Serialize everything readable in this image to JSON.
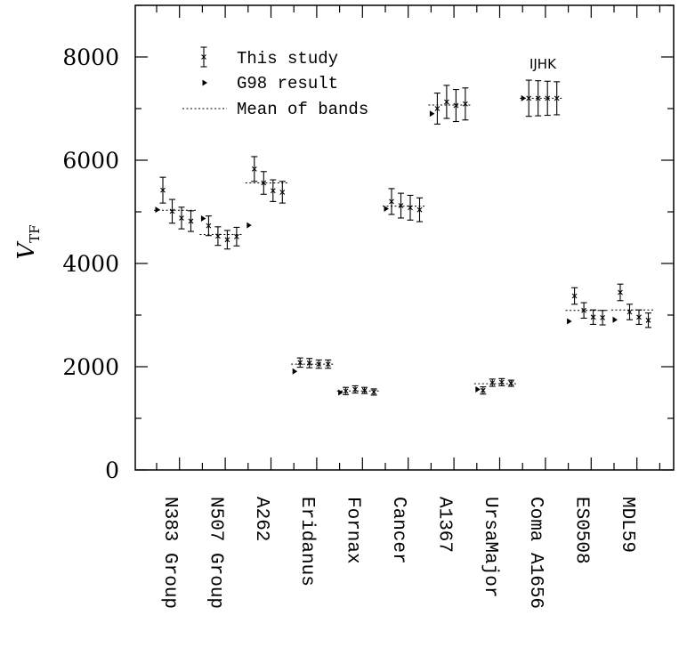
{
  "chart_data": {
    "type": "scatter",
    "title": "",
    "xlabel": "",
    "ylabel": "V",
    "ylabel_sub": "TF",
    "ylim": [
      0,
      9000
    ],
    "yticks": [
      0,
      2000,
      4000,
      6000,
      8000
    ],
    "yminor_step": 1000,
    "grid": false,
    "legend_position": "top-left",
    "legend": {
      "this_study": "This study",
      "g98": "G98 result",
      "mean": "Mean of bands"
    },
    "annotation": "IJHK",
    "annotation_cluster": "Coma A1656",
    "clusters": [
      {
        "name": "N383 Group",
        "g98": 5040,
        "mean": 5030,
        "points": [
          {
            "v": 5420,
            "err": 250
          },
          {
            "v": 5010,
            "err": 230
          },
          {
            "v": 4880,
            "err": 210
          },
          {
            "v": 4820,
            "err": 200
          }
        ]
      },
      {
        "name": "N507 Group",
        "g98": 4870,
        "mean": 4560,
        "points": [
          {
            "v": 4730,
            "err": 190
          },
          {
            "v": 4530,
            "err": 180
          },
          {
            "v": 4460,
            "err": 180
          },
          {
            "v": 4520,
            "err": 180
          }
        ]
      },
      {
        "name": "A262",
        "g98": 4740,
        "mean": 5560,
        "points": [
          {
            "v": 5830,
            "err": 240
          },
          {
            "v": 5560,
            "err": 220
          },
          {
            "v": 5410,
            "err": 210
          },
          {
            "v": 5380,
            "err": 210
          }
        ]
      },
      {
        "name": "Eridanus",
        "g98": 1910,
        "mean": 2050,
        "points": [
          {
            "v": 2080,
            "err": 90
          },
          {
            "v": 2070,
            "err": 90
          },
          {
            "v": 2050,
            "err": 80
          },
          {
            "v": 2050,
            "err": 80
          }
        ]
      },
      {
        "name": "Fornax",
        "g98": 1500,
        "mean": 1530,
        "points": [
          {
            "v": 1530,
            "err": 70
          },
          {
            "v": 1560,
            "err": 70
          },
          {
            "v": 1540,
            "err": 60
          },
          {
            "v": 1510,
            "err": 60
          }
        ]
      },
      {
        "name": "Cancer",
        "g98": 5060,
        "mean": 5110,
        "points": [
          {
            "v": 5200,
            "err": 250
          },
          {
            "v": 5120,
            "err": 240
          },
          {
            "v": 5080,
            "err": 240
          },
          {
            "v": 5040,
            "err": 230
          }
        ]
      },
      {
        "name": "A1367",
        "g98": 6900,
        "mean": 7070,
        "points": [
          {
            "v": 7000,
            "err": 300
          },
          {
            "v": 7130,
            "err": 320
          },
          {
            "v": 7060,
            "err": 310
          },
          {
            "v": 7090,
            "err": 310
          }
        ]
      },
      {
        "name": "UrsaMajor",
        "g98": 1560,
        "mean": 1670,
        "points": [
          {
            "v": 1540,
            "err": 70
          },
          {
            "v": 1690,
            "err": 70
          },
          {
            "v": 1700,
            "err": 70
          },
          {
            "v": 1680,
            "err": 60
          }
        ]
      },
      {
        "name": "Coma A1656",
        "g98": 7200,
        "mean": 7200,
        "points": [
          {
            "v": 7200,
            "err": 350
          },
          {
            "v": 7200,
            "err": 340
          },
          {
            "v": 7200,
            "err": 330
          },
          {
            "v": 7200,
            "err": 320
          }
        ]
      },
      {
        "name": "ES0508",
        "g98": 2880,
        "mean": 3090,
        "points": [
          {
            "v": 3370,
            "err": 160
          },
          {
            "v": 3090,
            "err": 150
          },
          {
            "v": 2960,
            "err": 140
          },
          {
            "v": 2950,
            "err": 140
          }
        ]
      },
      {
        "name": "MDL59",
        "g98": 2910,
        "mean": 3100,
        "points": [
          {
            "v": 3440,
            "err": 160
          },
          {
            "v": 3060,
            "err": 150
          },
          {
            "v": 2960,
            "err": 140
          },
          {
            "v": 2900,
            "err": 140
          }
        ]
      }
    ]
  }
}
